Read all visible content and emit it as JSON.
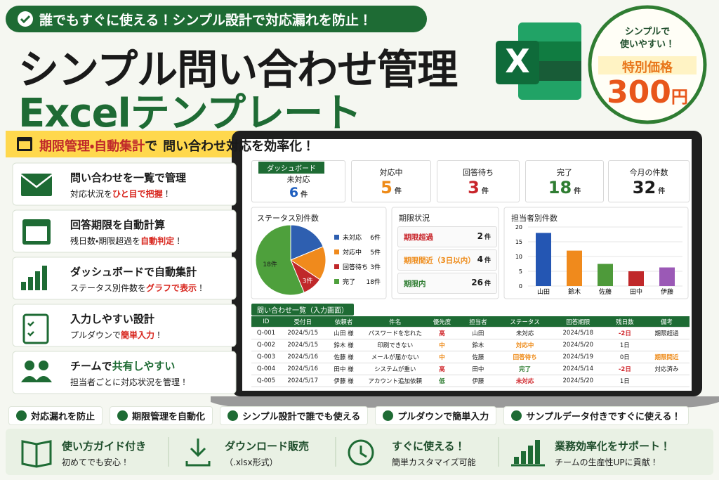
{
  "banner": "誰でもすぐに使える！シンプル設計で対応漏れを防止！",
  "title_line1": "シンプル問い合わせ管理",
  "title_line2": "Excelテンプレート",
  "excel_logo": "X",
  "badge": {
    "line1": "シンプルで",
    "line2": "使いやすい！",
    "label": "特別価格",
    "price": "300",
    "unit": "円"
  },
  "tagline": {
    "highlight": "期限管理・自動集計",
    "joiner": "で",
    "rest": "問い合わせ対応を効率化！"
  },
  "features": [
    {
      "title": [
        {
          "text": "問い合わせを一覧で管理"
        }
      ],
      "desc": [
        {
          "text": "対応状況を"
        },
        {
          "text": "ひと目で把握",
          "em": true
        },
        {
          "text": "！"
        }
      ]
    },
    {
      "title": [
        {
          "text": "回答期限を自動計算"
        }
      ],
      "desc": [
        {
          "text": "残日数・期限超過を"
        },
        {
          "text": "自動判定",
          "em": true
        },
        {
          "text": "！"
        }
      ]
    },
    {
      "title": [
        {
          "text": "ダッシュボードで自動集計"
        }
      ],
      "desc": [
        {
          "text": "ステータス別件数を"
        },
        {
          "text": "グラフで表示",
          "em": true
        },
        {
          "text": "！"
        }
      ]
    },
    {
      "title": [
        {
          "text": "入力しやすい設計"
        }
      ],
      "desc": [
        {
          "text": "プルダウンで"
        },
        {
          "text": "簡単入力",
          "em": true
        },
        {
          "text": "！"
        }
      ]
    },
    {
      "title": [
        {
          "text": "チームで"
        },
        {
          "text": "共有しやすい",
          "em": true
        }
      ],
      "desc": [
        {
          "text": "担当者ごとに対応状況を管理！"
        }
      ]
    }
  ],
  "dashboard": {
    "label": "ダッシュボード",
    "kpis": [
      {
        "label": "未対応",
        "value": 6,
        "unit": "件",
        "color": "#1f5fbf"
      },
      {
        "label": "対応中",
        "value": 5,
        "unit": "件",
        "color": "#ee8a17"
      },
      {
        "label": "回答待ち",
        "value": 3,
        "unit": "件",
        "color": "#c8242a"
      },
      {
        "label": "完了",
        "value": 18,
        "unit": "件",
        "color": "#2f7d32"
      },
      {
        "label": "今月の件数",
        "value": 32,
        "unit": "件",
        "color": "#1a1a1a"
      }
    ],
    "pie": {
      "type": "pie",
      "title": "ステータス別件数",
      "categories": [
        "未対応",
        "対応中",
        "回答待ち",
        "完了"
      ],
      "values": [
        6,
        5,
        3,
        18
      ],
      "value_labels": [
        "6件",
        "5件",
        "3件",
        "18件"
      ],
      "colors": [
        "#2e5fb0",
        "#f08a1c",
        "#c0282a",
        "#4ea03c"
      ]
    },
    "deadlines": {
      "title": "期限状況",
      "rows": [
        {
          "label": "期限超過",
          "value": 2,
          "unit": "件",
          "color": "#c8242a"
        },
        {
          "label": "期限間近（3日以内）",
          "value": 4,
          "unit": "件",
          "color": "#ee8a17"
        },
        {
          "label": "期限内",
          "value": 26,
          "unit": "件",
          "color": "#2f7d32"
        }
      ]
    },
    "bar": {
      "type": "bar",
      "title": "担当者別件数",
      "categories": [
        "山田",
        "鈴木",
        "佐藤",
        "田中",
        "伊藤"
      ],
      "values": [
        18,
        12,
        7.5,
        5,
        6.3
      ],
      "colors": [
        "#2456b3",
        "#f08a1c",
        "#4e9a3a",
        "#c0282a",
        "#9b59b6"
      ],
      "ylim": [
        0,
        20
      ],
      "yticks": [
        0,
        5,
        10,
        15,
        20
      ],
      "grid": true
    },
    "table": {
      "title": "問い合わせ一覧（入力画面）",
      "columns": [
        "ID",
        "受付日",
        "依頼者",
        "件名",
        "優先度",
        "担当者",
        "ステータス",
        "回答期限",
        "残日数",
        "備考"
      ],
      "rows": [
        [
          "Q-001",
          "2024/5/15",
          "山田 様",
          "パスワードを忘れた",
          {
            "text": "高",
            "color": "#d0262b"
          },
          "山田",
          "未対応",
          "2024/5/18",
          {
            "text": "-2日",
            "color": "#d0262b"
          },
          "期限超過"
        ],
        [
          "Q-002",
          "2024/5/15",
          "鈴木 様",
          "印刷できない",
          {
            "text": "中",
            "color": "#ee8a17"
          },
          "鈴木",
          {
            "text": "対応中",
            "color": "#ee8a17"
          },
          "2024/5/20",
          "1日",
          null
        ],
        [
          "Q-003",
          "2024/5/16",
          "佐藤 様",
          "メールが届かない",
          {
            "text": "中",
            "color": "#ee8a17"
          },
          "佐藤",
          {
            "text": "回答待ち",
            "color": "#ee8a17"
          },
          "2024/5/19",
          "0日",
          {
            "text": "期限間近",
            "color": "#ee8a17"
          }
        ],
        [
          "Q-004",
          "2024/5/16",
          "田中 様",
          "システムが重い",
          {
            "text": "高",
            "color": "#d0262b"
          },
          "田中",
          {
            "text": "完了",
            "color": "#2f7d32"
          },
          "2024/5/14",
          {
            "text": "-2日",
            "color": "#d0262b"
          },
          "対応済み"
        ],
        [
          "Q-005",
          "2024/5/17",
          "伊藤 様",
          "アカウント追加依頼",
          {
            "text": "低",
            "color": "#2f7d32"
          },
          "伊藤",
          {
            "text": "未対応",
            "color": "#d0262b"
          },
          "2024/5/20",
          "1日",
          null
        ]
      ]
    }
  },
  "checks": [
    "対応漏れを防止",
    "期限管理を自動化",
    "シンプル設計で誰でも使える",
    "プルダウンで簡単入力",
    "サンプルデータ付きですぐに使える！"
  ],
  "bottom": [
    {
      "title": "使い方ガイド付き",
      "desc": "初めてでも安心！"
    },
    {
      "title": "ダウンロード販売",
      "desc": "（.xlsx形式）"
    },
    {
      "title": "すぐに使える！",
      "desc": "簡単カスタマイズ可能"
    },
    {
      "title": "業務効率化をサポート！",
      "desc": "チームの生産性UPに貢献！"
    }
  ]
}
